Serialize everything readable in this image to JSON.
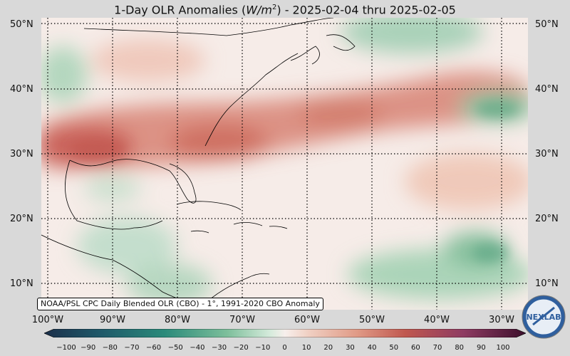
{
  "title": "1-Day OLR Anomalies (W/m²) - 2025-02-04 thru 2025-02-05",
  "title_parts": {
    "prefix": "1-Day OLR Anomalies (",
    "unit_base": "W/m",
    "unit_exp": "2",
    "suffix": ") - 2025-02-04 thru 2025-02-05"
  },
  "map": {
    "lat_labels_left": [
      "50°N",
      "40°N",
      "30°N",
      "20°N",
      "10°N"
    ],
    "lat_labels_right": [
      "50°N",
      "40°N",
      "30°N",
      "20°N",
      "10°N"
    ],
    "lon_labels": [
      "100°W",
      "90°W",
      "80°W",
      "70°W",
      "60°W",
      "50°W",
      "40°W",
      "30°W"
    ],
    "extent": {
      "lon_min": -101,
      "lon_max": -26,
      "lat_min": 6,
      "lat_max": 51
    },
    "caption": "NOAA/PSL CPC Daily Blended OLR (CBO) - 1°, 1991-2020 CBO Anomaly"
  },
  "colorbar": {
    "ticks": [
      "−100",
      "−90",
      "−80",
      "−70",
      "−60",
      "−50",
      "−40",
      "−30",
      "−20",
      "−10",
      "0",
      "10",
      "20",
      "30",
      "40",
      "50",
      "60",
      "70",
      "80",
      "90",
      "100"
    ],
    "range": [
      -100,
      100
    ],
    "colors": {
      "negative_deep": "#1b2f4a",
      "negative_mid": "#2a8a7a",
      "negative_light": "#9fcfb2",
      "neutral": "#f7efec",
      "positive_light": "#e9b09c",
      "positive_mid": "#c0584f",
      "positive_deep": "#3d0f2c"
    }
  },
  "logo": {
    "text": "NEXLAB",
    "name": "nexlab-logo"
  }
}
